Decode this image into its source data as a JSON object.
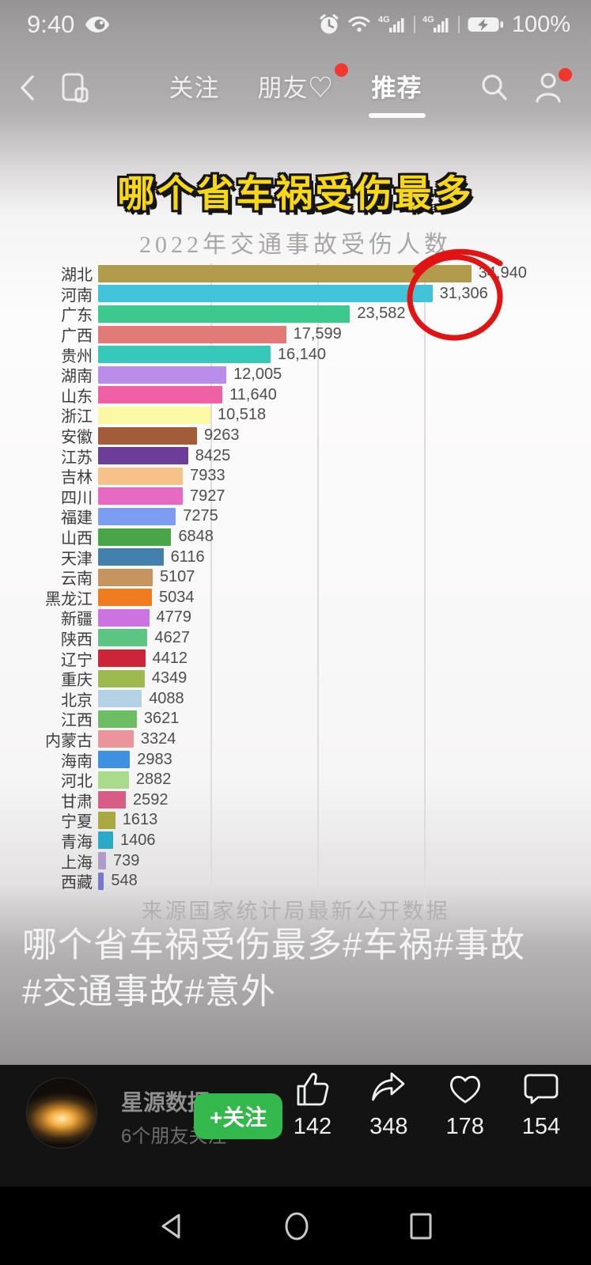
{
  "status_bar": {
    "time": "9:40",
    "battery_level": "100%"
  },
  "top_nav": {
    "tabs": [
      {
        "label": "关注",
        "active": false
      },
      {
        "label": "朋友♡",
        "active": false,
        "badge": true
      },
      {
        "label": "推荐",
        "active": true
      }
    ]
  },
  "overlay_title": "哪个省车祸受伤最多",
  "chart_data": {
    "type": "bar",
    "orientation": "horizontal",
    "title": "2022年交通事故受伤人数",
    "source_note": "来源国家统计局最新公开数据",
    "xlim": [
      0,
      38000
    ],
    "gridlines": [
      10000,
      20000,
      30000
    ],
    "legend": "none",
    "annotation": "hand-drawn red circle around top two values",
    "categories": [
      "湖北",
      "河南",
      "广东",
      "广西",
      "贵州",
      "湖南",
      "山东",
      "浙江",
      "安徽",
      "江苏",
      "吉林",
      "四川",
      "福建",
      "山西",
      "天津",
      "云南",
      "黑龙江",
      "新疆",
      "陕西",
      "辽宁",
      "重庆",
      "北京",
      "江西",
      "内蒙古",
      "海南",
      "河北",
      "甘肃",
      "宁夏",
      "青海",
      "上海",
      "西藏"
    ],
    "values": [
      34940,
      31306,
      23582,
      17599,
      16140,
      12005,
      11640,
      10518,
      9263,
      8425,
      7933,
      7927,
      7275,
      6848,
      6116,
      5107,
      5034,
      4779,
      4627,
      4412,
      4349,
      4088,
      3621,
      3324,
      2983,
      2882,
      2592,
      1613,
      1406,
      739,
      548
    ],
    "value_labels": [
      "34,940",
      "31,306",
      "23,582",
      "17,599",
      "16,140",
      "12,005",
      "11,640",
      "10,518",
      "9263",
      "8425",
      "7933",
      "7927",
      "7275",
      "6848",
      "6116",
      "5107",
      "5034",
      "4779",
      "4627",
      "4412",
      "4349",
      "4088",
      "3621",
      "3324",
      "2983",
      "2882",
      "2592",
      "1613",
      "1406",
      "739",
      "548"
    ],
    "bar_colors": [
      "#b39b4d",
      "#42c3dc",
      "#3dc98d",
      "#e27a78",
      "#36c9b9",
      "#bb8deb",
      "#ee61a5",
      "#fbf9a4",
      "#a25c3a",
      "#6b3e99",
      "#f6c287",
      "#e66ac2",
      "#7d9df1",
      "#48a647",
      "#4280ad",
      "#c6945f",
      "#f07c22",
      "#cb73e1",
      "#5dc584",
      "#cc2439",
      "#9dba50",
      "#b3d2e5",
      "#6dbd62",
      "#ec949c",
      "#3e91e1",
      "#aadb8c",
      "#d75c86",
      "#a9a843",
      "#2ba9c9",
      "#ae9dc9",
      "#7578cd"
    ]
  },
  "caption": {
    "text": "哪个省车祸受伤最多#车祸#事故#交通事故#意外"
  },
  "footer": {
    "username": "星源数据",
    "friends_note": "6个朋友关注",
    "follow_label": "+关注",
    "actions": [
      {
        "name": "like",
        "count": "142"
      },
      {
        "name": "share",
        "count": "348"
      },
      {
        "name": "favorite",
        "count": "178"
      },
      {
        "name": "comment",
        "count": "154"
      }
    ]
  },
  "colors": {
    "accent_red": "#f4372e",
    "annotation_red": "#e21313",
    "follow_green": "#32b84b",
    "title_yellow": "#f8d815"
  },
  "icons": [
    "eye-icon",
    "alarm-icon",
    "wifi-icon",
    "signal-4g-icon",
    "battery-charging-icon",
    "back-icon",
    "multi-window-icon",
    "search-icon",
    "profile-icon",
    "thumbs-up-icon",
    "share-icon",
    "heart-icon",
    "comment-icon",
    "android-back-icon",
    "android-home-icon",
    "android-recents-icon"
  ]
}
